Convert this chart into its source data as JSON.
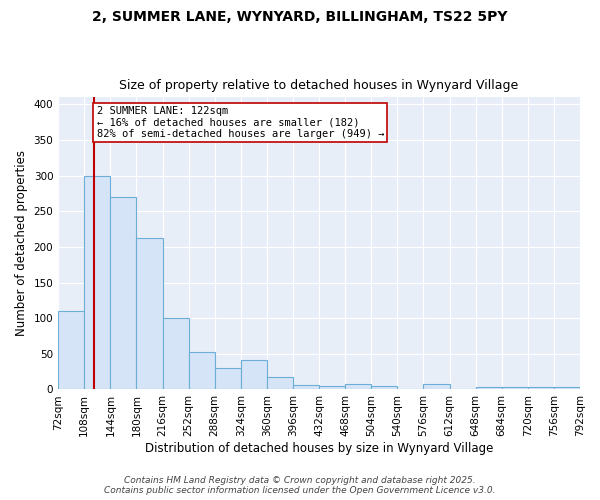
{
  "title_line1": "2, SUMMER LANE, WYNYARD, BILLINGHAM, TS22 5PY",
  "title_line2": "Size of property relative to detached houses in Wynyard Village",
  "xlabel": "Distribution of detached houses by size in Wynyard Village",
  "ylabel": "Number of detached properties",
  "bar_edges": [
    72,
    108,
    144,
    180,
    216,
    252,
    288,
    324,
    360,
    396,
    432,
    468,
    504,
    540,
    576,
    612,
    648,
    684,
    720,
    756,
    792
  ],
  "bar_heights": [
    110,
    300,
    270,
    213,
    100,
    52,
    30,
    42,
    18,
    6,
    5,
    8,
    5,
    0,
    8,
    0,
    4,
    3,
    3,
    3
  ],
  "bar_facecolor": "#d6e4f7",
  "bar_edgecolor": "#6baed6",
  "property_size": 122,
  "vline_color": "#c00000",
  "annotation_line1": "2 SUMMER LANE: 122sqm",
  "annotation_line2": "← 16% of detached houses are smaller (182)",
  "annotation_line3": "82% of semi-detached houses are larger (949) →",
  "annotation_box_edgecolor": "#c00000",
  "annotation_box_facecolor": "#ffffff",
  "ylim": [
    0,
    410
  ],
  "yticks": [
    0,
    50,
    100,
    150,
    200,
    250,
    300,
    350,
    400
  ],
  "plot_bg_color": "#e8eef8",
  "grid_color": "#ffffff",
  "footer_line1": "Contains HM Land Registry data © Crown copyright and database right 2025.",
  "footer_line2": "Contains public sector information licensed under the Open Government Licence v3.0.",
  "title_fontsize": 10,
  "subtitle_fontsize": 9,
  "axis_label_fontsize": 8.5,
  "tick_fontsize": 7.5,
  "annotation_fontsize": 7.5,
  "footer_fontsize": 6.5
}
